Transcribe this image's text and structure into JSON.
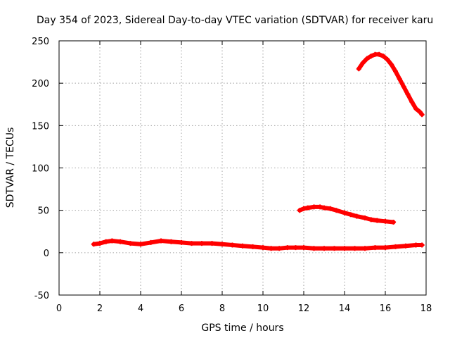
{
  "chart_data": {
    "type": "scatter",
    "title": "Day 354 of 2023, Sidereal Day-to-day VTEC variation (SDTVAR) for receiver karu",
    "xlabel": "GPS time / hours",
    "ylabel": "SDTVAR / TECUs",
    "xlim": [
      0,
      18
    ],
    "ylim": [
      -50,
      250
    ],
    "xticks": [
      0,
      2,
      4,
      6,
      8,
      10,
      12,
      14,
      16,
      18
    ],
    "yticks": [
      -50,
      0,
      50,
      100,
      150,
      200,
      250
    ],
    "xtick_labels": [
      "0",
      "2",
      "4",
      "6",
      "8",
      "10",
      "12",
      "14",
      "16",
      "18"
    ],
    "ytick_labels": [
      "-50",
      "0",
      "50",
      "100",
      "150",
      "200",
      "250"
    ],
    "grid": true,
    "marker": "plus",
    "color": "#ff0000",
    "series": [
      {
        "name": "track-baseline",
        "x": [
          1.7,
          2.0,
          2.3,
          2.6,
          3.0,
          3.5,
          4.0,
          4.5,
          5.0,
          5.5,
          6.0,
          6.5,
          7.0,
          7.5,
          8.0,
          8.5,
          9.0,
          9.5,
          10.0,
          10.4,
          10.8,
          11.2,
          11.6,
          12.0,
          12.5,
          13.0,
          13.5,
          14.0,
          14.5,
          15.0,
          15.5,
          16.0,
          16.5,
          17.0,
          17.5,
          17.8
        ],
        "y": [
          10,
          11,
          13,
          14,
          13,
          11,
          10,
          12,
          14,
          13,
          12,
          11,
          11,
          11,
          10,
          9,
          8,
          7,
          6,
          5,
          5,
          6,
          6,
          6,
          5,
          5,
          5,
          5,
          5,
          5,
          6,
          6,
          7,
          8,
          9,
          9
        ]
      },
      {
        "name": "track-midday",
        "x": [
          11.8,
          12.0,
          12.2,
          12.5,
          12.8,
          13.0,
          13.3,
          13.6,
          14.0,
          14.3,
          14.6,
          15.0,
          15.3,
          15.6,
          16.0,
          16.4
        ],
        "y": [
          50,
          52,
          53,
          54,
          54,
          53,
          52,
          50,
          47,
          45,
          43,
          41,
          39,
          38,
          37,
          36
        ]
      },
      {
        "name": "track-evening",
        "x": [
          14.7,
          14.9,
          15.1,
          15.3,
          15.5,
          15.7,
          15.9,
          16.1,
          16.3,
          16.5,
          16.7,
          16.9,
          17.1,
          17.3,
          17.5,
          17.7,
          17.8
        ],
        "y": [
          217,
          224,
          229,
          232,
          234,
          234,
          232,
          228,
          222,
          214,
          205,
          196,
          187,
          178,
          170,
          166,
          163
        ]
      }
    ]
  }
}
